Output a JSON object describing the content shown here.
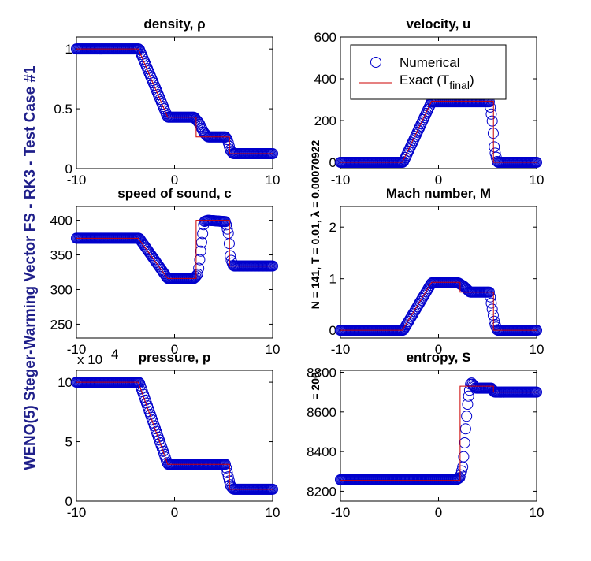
{
  "figure": {
    "suptitle": "WENO(5) Steger-Warming Vector FS - RK3 - Test Case #1",
    "subtitle": "N = 141,  T = 0.01,  λ = 0.00070922",
    "subtitle_overprint": "= 200,"
  },
  "legend": {
    "numerical": "Numerical",
    "exact": "Exact (T",
    "exact_sub": "final",
    "exact_close": ")"
  },
  "colors": {
    "markers": "#0000cc",
    "exact_line": "#cc0000",
    "suptitle": "#1f1f8a"
  },
  "chart_data": [
    {
      "id": "density",
      "type": "line",
      "title": "density, ρ",
      "xlim": [
        -10,
        10
      ],
      "ylim": [
        0,
        1.1
      ],
      "xticks": [
        "-10",
        "0",
        "10"
      ],
      "yticks": [
        0,
        0.5,
        1
      ],
      "ytick_labels": [
        "0",
        "0.5",
        "1"
      ],
      "exact": {
        "x": [
          -10,
          -3.7,
          -0.7,
          2.2,
          2.2,
          3.4,
          3.4,
          5.6,
          5.6,
          10
        ],
        "y": [
          1,
          1,
          0.43,
          0.43,
          0.265,
          0.265,
          0.265,
          0.265,
          0.125,
          0.125
        ]
      },
      "numerical": {
        "x": [
          -10,
          -3.6,
          -0.7,
          2.0,
          2.5,
          3.0,
          3.4,
          5.2,
          5.4,
          5.7,
          6.0,
          10
        ],
        "y": [
          1,
          1,
          0.43,
          0.43,
          0.38,
          0.3,
          0.265,
          0.265,
          0.24,
          0.15,
          0.125,
          0.125
        ]
      }
    },
    {
      "id": "velocity",
      "type": "line",
      "title": "velocity, u",
      "xlim": [
        -10,
        10
      ],
      "ylim": [
        -30,
        600
      ],
      "xticks": [
        "-10",
        "0",
        "10"
      ],
      "yticks": [
        0,
        200,
        400,
        600
      ],
      "ytick_labels": [
        "0",
        "200",
        "400",
        "600"
      ],
      "exact": {
        "x": [
          -10,
          -3.7,
          -0.7,
          5.6,
          5.6,
          10
        ],
        "y": [
          0,
          0,
          293,
          293,
          0,
          0
        ]
      },
      "numerical": {
        "x": [
          -10,
          -3.6,
          -0.7,
          5.2,
          5.5,
          5.7,
          6.0,
          10
        ],
        "y": [
          0,
          0,
          290,
          290,
          190,
          60,
          0,
          0
        ]
      }
    },
    {
      "id": "speed_of_sound",
      "type": "line",
      "title": "speed of sound, c",
      "xlim": [
        -10,
        10
      ],
      "ylim": [
        230,
        420
      ],
      "xticks": [
        "-10",
        "0",
        "10"
      ],
      "yticks": [
        250,
        300,
        350,
        400
      ],
      "ytick_labels": [
        "250",
        "300",
        "350",
        "400"
      ],
      "exact": {
        "x": [
          -10,
          -3.7,
          -0.7,
          2.2,
          2.2,
          5.6,
          5.6,
          10
        ],
        "y": [
          374,
          374,
          316,
          316,
          400,
          400,
          334,
          334
        ]
      },
      "numerical": {
        "x": [
          -10,
          -3.6,
          -0.7,
          2.0,
          2.4,
          2.7,
          3.0,
          3.4,
          5.2,
          5.5,
          5.7,
          6.0,
          10
        ],
        "y": [
          374,
          374,
          316,
          316,
          323,
          360,
          398,
          400,
          398,
          380,
          345,
          334,
          334
        ]
      }
    },
    {
      "id": "mach",
      "type": "line",
      "title": "Mach number, M",
      "xlim": [
        -10,
        10
      ],
      "ylim": [
        -0.15,
        2.4
      ],
      "xticks": [
        "-10",
        "0",
        "10"
      ],
      "yticks": [
        0,
        1,
        2
      ],
      "ytick_labels": [
        "0",
        "1",
        "2"
      ],
      "exact": {
        "x": [
          -10,
          -3.7,
          -0.7,
          2.2,
          2.2,
          5.6,
          5.6,
          10
        ],
        "y": [
          0,
          0,
          0.93,
          0.93,
          0.74,
          0.74,
          0,
          0
        ]
      },
      "numerical": {
        "x": [
          -10,
          -3.6,
          -0.7,
          2.0,
          2.6,
          3.2,
          5.2,
          5.4,
          5.7,
          6.0,
          10
        ],
        "y": [
          0,
          0,
          0.92,
          0.92,
          0.85,
          0.74,
          0.74,
          0.5,
          0.15,
          0,
          0
        ]
      }
    },
    {
      "id": "pressure",
      "type": "line",
      "title": "pressure, p",
      "scale_label": "x 10",
      "scale_exponent": "4",
      "xlim": [
        -10,
        10
      ],
      "ylim": [
        0,
        11
      ],
      "xticks": [
        "-10",
        "0",
        "10"
      ],
      "yticks": [
        0,
        5,
        10
      ],
      "ytick_labels": [
        "0",
        "5",
        "10"
      ],
      "exact": {
        "x": [
          -10,
          -3.7,
          -0.7,
          5.6,
          5.6,
          10
        ],
        "y": [
          10,
          10,
          3.1,
          3.1,
          1,
          1
        ]
      },
      "numerical": {
        "x": [
          -10,
          -3.6,
          -0.7,
          5.2,
          5.4,
          5.7,
          6.0,
          10
        ],
        "y": [
          10,
          10,
          3.1,
          3.1,
          2.3,
          1.3,
          1,
          1
        ]
      }
    },
    {
      "id": "entropy",
      "type": "line",
      "title": "entropy, S",
      "xlim": [
        -10,
        10
      ],
      "ylim": [
        8150,
        8810
      ],
      "xticks": [
        "-10",
        "0",
        "10"
      ],
      "yticks": [
        8200,
        8400,
        8600,
        8800
      ],
      "ytick_labels": [
        "8200",
        "8400",
        "8600",
        "8800"
      ],
      "exact": {
        "x": [
          -10,
          2.2,
          2.2,
          3.4,
          3.4,
          5.6,
          5.6,
          10
        ],
        "y": [
          8255,
          8255,
          8730,
          8730,
          8730,
          8730,
          8700,
          8700
        ]
      },
      "numerical": {
        "x": [
          -10,
          1.8,
          2.2,
          2.5,
          2.8,
          3.0,
          3.3,
          3.8,
          5.4,
          5.7,
          6.0,
          10
        ],
        "y": [
          8258,
          8258,
          8270,
          8330,
          8540,
          8660,
          8750,
          8720,
          8720,
          8700,
          8700,
          8700
        ]
      }
    }
  ]
}
